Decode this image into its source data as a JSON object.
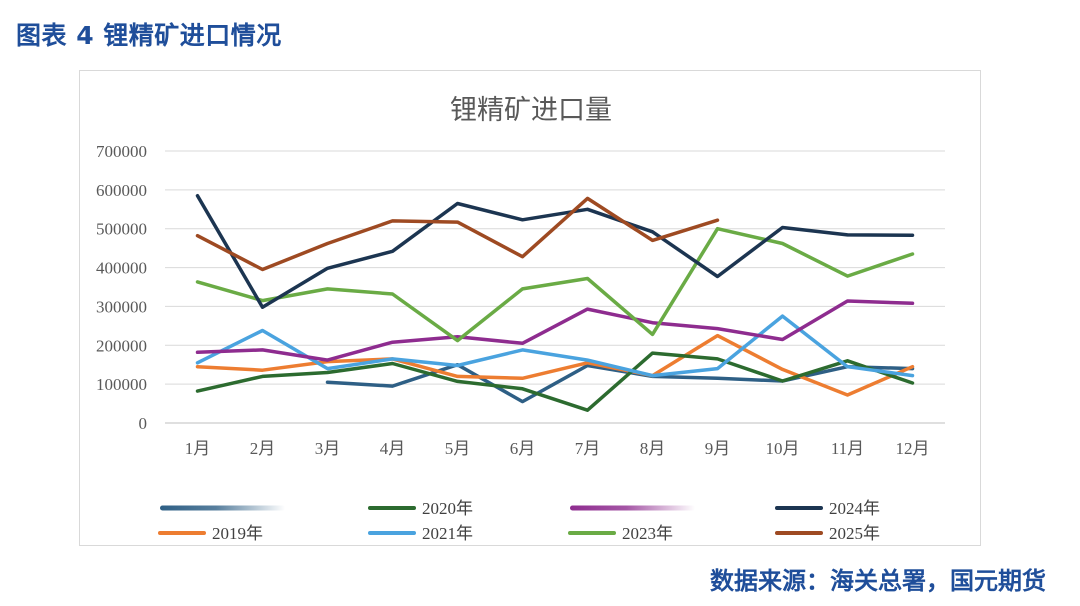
{
  "caption": "图表 4 锂精矿进口情况",
  "source": "数据来源：海关总署，国元期货",
  "chart_data": {
    "type": "line",
    "title": "锂精矿进口量",
    "xlabel": "",
    "ylabel": "",
    "ylim": [
      0,
      700000
    ],
    "yticks": [
      "0",
      "100000",
      "200000",
      "300000",
      "400000",
      "500000",
      "600000",
      "700000"
    ],
    "categories": [
      "1月",
      "2月",
      "3月",
      "4月",
      "5月",
      "6月",
      "7月",
      "8月",
      "9月",
      "10月",
      "11月",
      "12月"
    ],
    "series": [
      {
        "name": "",
        "color": "#2e5f85",
        "values": [
          null,
          null,
          105000,
          95000,
          150000,
          55000,
          148000,
          120000,
          115000,
          108000,
          145000,
          140000
        ]
      },
      {
        "name": "2019年",
        "color": "#ed7d31",
        "values": [
          145000,
          136000,
          158000,
          165000,
          120000,
          115000,
          155000,
          122000,
          225000,
          138000,
          72000,
          145000
        ]
      },
      {
        "name": "2020年",
        "color": "#2c6b2f",
        "values": [
          82000,
          120000,
          130000,
          153000,
          107000,
          88000,
          33000,
          180000,
          165000,
          108000,
          160000,
          103000
        ]
      },
      {
        "name": "2021年",
        "color": "#4aa3df",
        "values": [
          155000,
          238000,
          140000,
          165000,
          148000,
          188000,
          162000,
          122000,
          140000,
          275000,
          145000,
          122000
        ]
      },
      {
        "name": "",
        "color": "#8e2c8f",
        "values": [
          182000,
          188000,
          162000,
          208000,
          222000,
          205000,
          293000,
          258000,
          243000,
          215000,
          314000,
          308000
        ]
      },
      {
        "name": "2023年",
        "color": "#6aab45",
        "values": [
          363000,
          315000,
          345000,
          332000,
          212000,
          345000,
          372000,
          228000,
          500000,
          462000,
          378000,
          435000
        ]
      },
      {
        "name": "2024年",
        "color": "#1c3551",
        "values": [
          585000,
          298000,
          398000,
          442000,
          565000,
          523000,
          550000,
          492000,
          377000,
          503000,
          484000,
          483000
        ]
      },
      {
        "name": "2025年",
        "color": "#9e4a22",
        "values": [
          482000,
          395000,
          462000,
          520000,
          517000,
          428000,
          578000,
          470000,
          522000,
          null,
          null,
          null
        ]
      }
    ]
  }
}
